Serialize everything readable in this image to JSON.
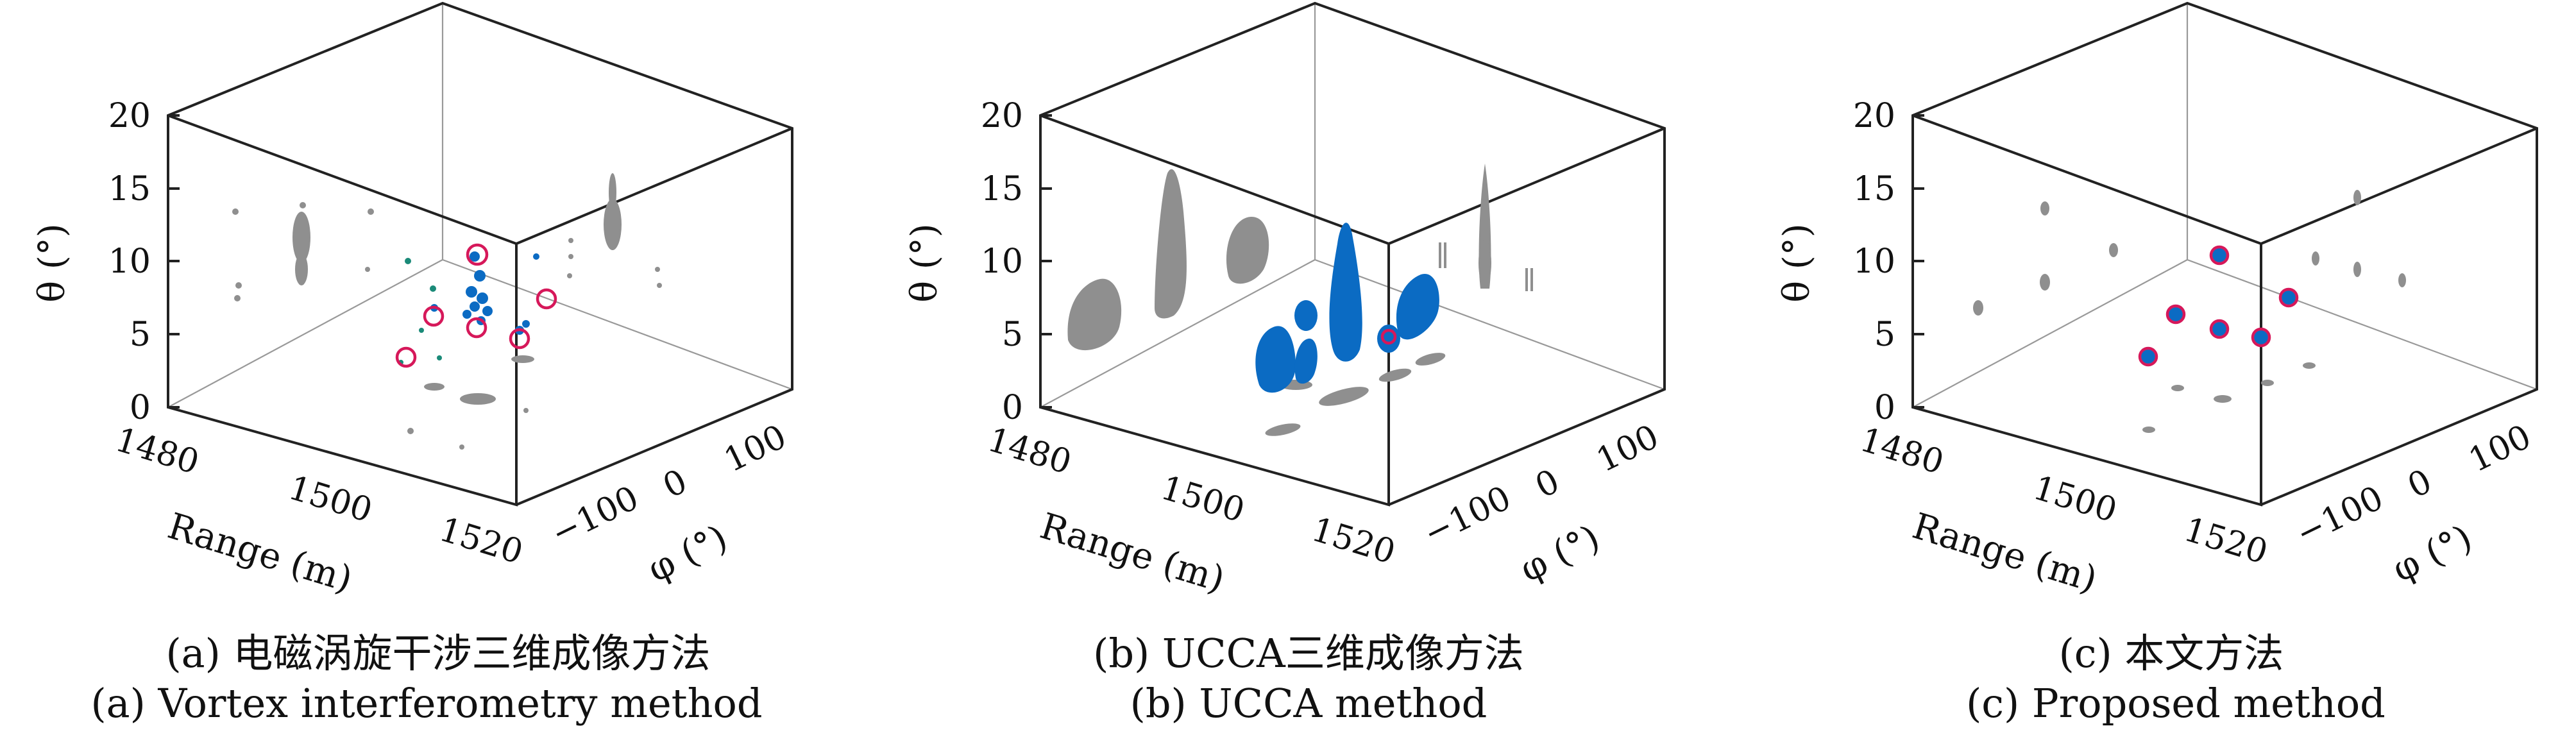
{
  "panels": [
    {
      "id": "a",
      "caption_cn": "(a)  电磁涡旋干涉三维成像方法",
      "caption_en": "(a) Vortex interferometry method"
    },
    {
      "id": "b",
      "caption_cn": "(b) UCCA三维成像方法",
      "caption_en": "(b) UCCA method"
    },
    {
      "id": "c",
      "caption_cn": "(c)  本文方法",
      "caption_en": "(c) Proposed method"
    }
  ],
  "axes": {
    "z_label": "θ (°)",
    "x_label": "Range (m)",
    "y_label": "φ (°)",
    "z_ticks": [
      "0",
      "5",
      "10",
      "15",
      "20"
    ],
    "x_ticks": [
      "1480",
      "1500",
      "1520"
    ],
    "y_ticks": [
      "−100",
      "0",
      "100"
    ]
  },
  "colors": {
    "target": "#0b6bc3",
    "true_position": "#d6185a",
    "projection": "#8f8f8f",
    "frame": "#222222"
  },
  "chart_data": [
    {
      "type": "scatter",
      "panel": "a",
      "axes": {
        "range_m": [
          1475,
          1525
        ],
        "phi_deg": [
          -180,
          180
        ],
        "theta_deg": [
          0,
          20
        ]
      },
      "series": [
        {
          "marker": "ring",
          "points": [
            [
              1500,
              -20,
              10.5
            ],
            [
              1490,
              70,
              7.5
            ],
            [
              1510,
              -120,
              3.5
            ],
            [
              1505,
              -40,
              5.5
            ],
            [
              1515,
              40,
              5.0
            ],
            [
              1497,
              -60,
              6.5
            ]
          ]
        },
        {
          "marker": "cluster",
          "points": [
            [
              1500,
              -20,
              9
            ],
            [
              1500,
              -20,
              8
            ],
            [
              1500,
              -20,
              7
            ],
            [
              1502,
              -10,
              6.5
            ],
            [
              1498,
              -30,
              7.5
            ],
            [
              1515,
              40,
              5.5
            ]
          ]
        }
      ]
    },
    {
      "type": "scatter",
      "panel": "b",
      "axes": {
        "range_m": [
          1475,
          1525
        ],
        "phi_deg": [
          -180,
          180
        ],
        "theta_deg": [
          0,
          20
        ]
      },
      "series": [
        {
          "marker": "blob",
          "points": [
            [
              1500,
              -20,
              9
            ],
            [
              1490,
              70,
              6
            ],
            [
              1510,
              -120,
              4
            ],
            [
              1505,
              -40,
              5
            ],
            [
              1515,
              40,
              5
            ]
          ]
        }
      ]
    },
    {
      "type": "scatter",
      "panel": "c",
      "axes": {
        "range_m": [
          1475,
          1525
        ],
        "phi_deg": [
          -180,
          180
        ],
        "theta_deg": [
          0,
          20
        ]
      },
      "series": [
        {
          "marker": "ring+dot",
          "points": [
            [
              1500,
              -20,
              10.5
            ],
            [
              1490,
              70,
              7.5
            ],
            [
              1510,
              -120,
              3.5
            ],
            [
              1505,
              -40,
              5.5
            ],
            [
              1515,
              40,
              5.0
            ],
            [
              1497,
              -60,
              6.5
            ]
          ]
        }
      ]
    }
  ]
}
